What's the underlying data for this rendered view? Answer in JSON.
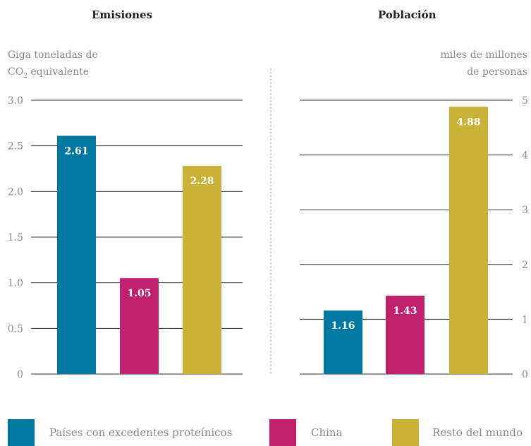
{
  "colors": {
    "teal": "#00789f",
    "magenta": "#c0216f",
    "gold": "#c9b236",
    "gridline": "#333333",
    "divider": "#999999"
  },
  "legend": [
    {
      "label": "Países con excedentes proteínicos",
      "color": "#00789f"
    },
    {
      "label": "China",
      "color": "#c0216f"
    },
    {
      "label": "Resto del mundo",
      "color": "#c9b236"
    }
  ],
  "chart_data": [
    {
      "type": "bar",
      "title": "Emisiones",
      "ylabel_line1": "Giga toneladas de",
      "ylabel_line2_main": "CO",
      "ylabel_line2_sub": "2",
      "ylabel_line2_rest": " equivalente",
      "categories": [
        "Países con excedentes proteínicos",
        "China",
        "Resto del mundo"
      ],
      "values": [
        2.61,
        1.05,
        2.28
      ],
      "data_labels": [
        "2.61",
        "1.05",
        "2.28"
      ],
      "colors": [
        "#00789f",
        "#c0216f",
        "#c9b236"
      ],
      "ylim": [
        0,
        3.0
      ],
      "yticks": [
        0,
        0.5,
        1.0,
        1.5,
        2.0,
        2.5,
        3.0
      ],
      "ytick_labels": [
        "0",
        "0.5",
        "1.0",
        "1.5",
        "2.0",
        "2.5",
        "3.0"
      ],
      "axis_side": "left",
      "grid": true
    },
    {
      "type": "bar",
      "title": "Población",
      "ylabel_line1": "miles de millones",
      "ylabel_line2": "de personas",
      "categories": [
        "Países con excedentes proteínicos",
        "China",
        "Resto del mundo"
      ],
      "values": [
        1.16,
        1.43,
        4.88
      ],
      "data_labels": [
        "1.16",
        "1.43",
        "4.88"
      ],
      "colors": [
        "#00789f",
        "#c0216f",
        "#c9b236"
      ],
      "ylim": [
        0,
        5
      ],
      "yticks": [
        0,
        1,
        2,
        3,
        4,
        5
      ],
      "ytick_labels": [
        "0",
        "1",
        "2",
        "3",
        "4",
        "5"
      ],
      "axis_side": "right",
      "grid": true
    }
  ]
}
